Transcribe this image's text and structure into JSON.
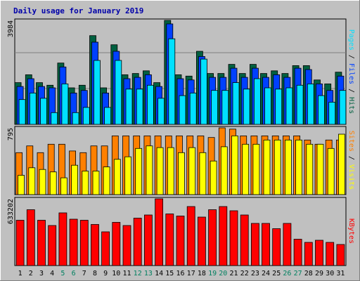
{
  "chart_data": {
    "type": "bar",
    "title": "Daily usage for January 2019",
    "categories": [
      "1",
      "2",
      "3",
      "4",
      "5",
      "6",
      "7",
      "8",
      "9",
      "10",
      "11",
      "12",
      "13",
      "14",
      "15",
      "16",
      "17",
      "18",
      "19",
      "20",
      "21",
      "22",
      "23",
      "24",
      "25",
      "26",
      "27",
      "28",
      "29",
      "30",
      "31"
    ],
    "weekend_days": [
      "5",
      "6",
      "12",
      "13",
      "19",
      "20",
      "26",
      "27"
    ],
    "panels": [
      {
        "id": "hits",
        "ymax_label": "3984",
        "ymax": 3984,
        "series": [
          {
            "name": "Hits",
            "color": "#006040",
            "values": [
              1600,
              1900,
              1600,
              1500,
              2350,
              1400,
              1500,
              3400,
              1400,
              3050,
              1900,
              1950,
              2050,
              1600,
              3984,
              1900,
              1850,
              2800,
              1950,
              1950,
              2300,
              1950,
              2300,
              1950,
              2050,
              1950,
              2250,
              2250,
              1700,
              1550,
              2000
            ]
          },
          {
            "name": "Files",
            "color": "#0040ff",
            "values": [
              1450,
              1750,
              1450,
              1400,
              2200,
              1200,
              1300,
              3150,
              1200,
              2800,
              1750,
              1800,
              1900,
              1450,
              3850,
              1750,
              1700,
              2600,
              1800,
              1800,
              2150,
              1800,
              2150,
              1800,
              1900,
              1800,
              2150,
              2100,
              1550,
              1300,
              1850
            ]
          },
          {
            "name": "Pages",
            "color": "#00e0ff",
            "values": [
              950,
              1200,
              1000,
              450,
              1550,
              450,
              650,
              2450,
              650,
              2450,
              1350,
              1350,
              1500,
              1000,
              3280,
              1100,
              1200,
              2500,
              1300,
              1300,
              1600,
              1350,
              1750,
              1400,
              1350,
              1400,
              1500,
              1550,
              1100,
              850,
              1300
            ]
          }
        ]
      },
      {
        "id": "visits",
        "ymax_label": "795",
        "ymax": 795,
        "series": [
          {
            "name": "Sites",
            "color": "#ff8000",
            "values": [
              500,
              580,
              500,
              600,
              600,
              520,
              500,
              580,
              580,
              700,
              700,
              700,
              700,
              700,
              700,
              700,
              700,
              700,
              680,
              795,
              780,
              700,
              700,
              700,
              700,
              700,
              700,
              650,
              600,
              650,
              650
            ]
          },
          {
            "name": "Visits",
            "color": "#ffff00",
            "values": [
              230,
              320,
              300,
              270,
              200,
              350,
              280,
              280,
              330,
              420,
              450,
              550,
              580,
              560,
              560,
              500,
              560,
              500,
              400,
              570,
              700,
              600,
              600,
              650,
              650,
              650,
              650,
              600,
              600,
              550,
              720
            ]
          }
        ],
        "label_parts": [
          "Sites",
          " / ",
          "Visits"
        ]
      },
      {
        "id": "kbytes",
        "ymax_label": "633202",
        "ymax": 633202,
        "series": [
          {
            "name": "KBytes",
            "color": "#ff0000",
            "values": [
              430000,
              530000,
              430000,
              380000,
              500000,
              440000,
              430000,
              390000,
              320000,
              410000,
              380000,
              450000,
              480000,
              633202,
              490000,
              470000,
              560000,
              460000,
              530000,
              560000,
              520000,
              480000,
              400000,
              400000,
              350000,
              400000,
              250000,
              220000,
              240000,
              220000,
              200000
            ]
          }
        ]
      }
    ],
    "right_labels": {
      "top_parts": [
        "Pages",
        " / ",
        "Files",
        " / ",
        "Hits"
      ],
      "middle_parts": [
        "Sites",
        " / ",
        "Visits"
      ],
      "bottom_parts": [
        "KBytes"
      ]
    },
    "colors": {
      "background": "#c0c0c0",
      "title": "#0000aa",
      "weekend_label": "#008060",
      "weekday_label": "#000000"
    }
  }
}
